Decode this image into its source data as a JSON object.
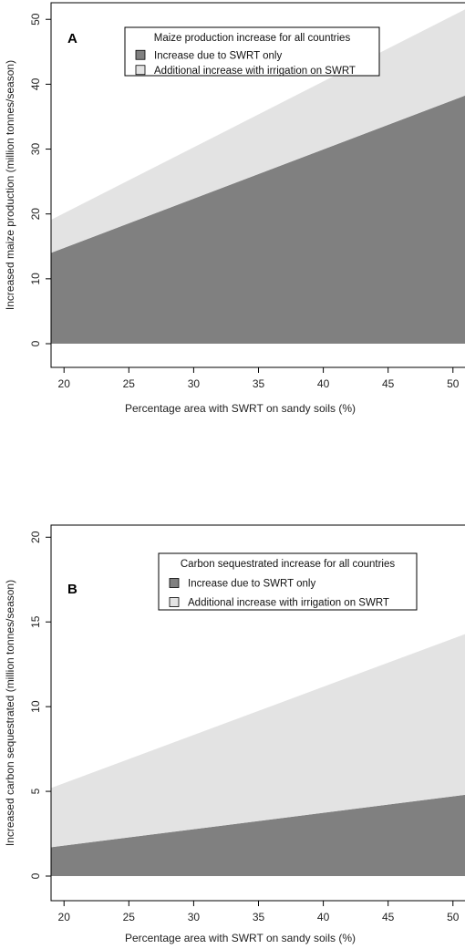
{
  "chart_data": [
    {
      "type": "area",
      "panel_label": "A",
      "xlabel": "Percentage area with SWRT on sandy soils (%)",
      "ylabel": "Increased maize production (million tonnes/season)",
      "xlim": [
        19,
        51
      ],
      "ylim": [
        0,
        52
      ],
      "x_ticks": [
        20,
        25,
        30,
        35,
        40,
        45,
        50
      ],
      "y_ticks": [
        0,
        10,
        20,
        30,
        40,
        50
      ],
      "legend_title": "Maize production increase for all countries",
      "legend_position": "top-center",
      "grid": false,
      "stacked": true,
      "x": [
        19,
        51
      ],
      "series": [
        {
          "name": "Increase due to SWRT only",
          "color": "#808080",
          "values": [
            14.0,
            38.3
          ]
        },
        {
          "name": "Additional increase with irrigation on SWRT",
          "color": "#e3e3e3",
          "values": [
            5.1,
            13.3
          ]
        }
      ]
    },
    {
      "type": "area",
      "panel_label": "B",
      "xlabel": "Percentage area with SWRT on sandy soils (%)",
      "ylabel": "Increased carbon sequestrated (million tonnes/season)",
      "xlim": [
        19,
        51
      ],
      "ylim": [
        0,
        20.5
      ],
      "x_ticks": [
        20,
        25,
        30,
        35,
        40,
        45,
        50
      ],
      "y_ticks": [
        0,
        5,
        10,
        15,
        20
      ],
      "legend_title": "Carbon sequestrated increase for all countries",
      "legend_position": "top-right",
      "grid": false,
      "stacked": true,
      "x": [
        19,
        51
      ],
      "series": [
        {
          "name": "Increase due to SWRT only",
          "color": "#808080",
          "values": [
            1.7,
            4.8
          ]
        },
        {
          "name": "Additional increase with irrigation on SWRT",
          "color": "#e3e3e3",
          "values": [
            3.5,
            9.5
          ]
        }
      ]
    }
  ]
}
